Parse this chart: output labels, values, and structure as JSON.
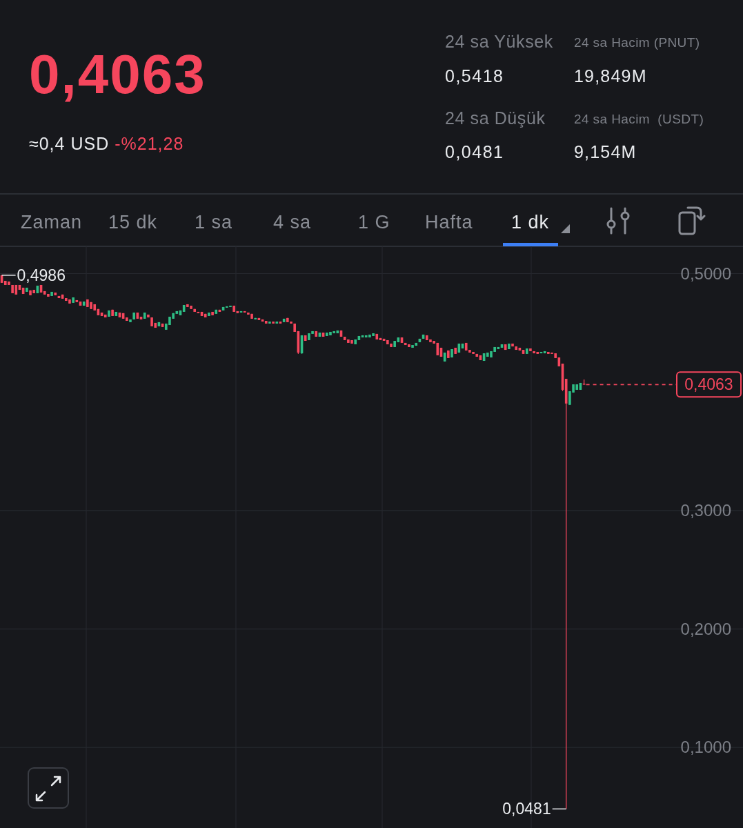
{
  "chart_data": {
    "type": "candlestick",
    "title": "0,4063",
    "annotations": [
      "≈0,4 USD",
      "-%21,28",
      "24 sa Yüksek",
      "0,5418",
      "24 sa Hacim (PNUT)",
      "19,849M",
      "24 sa Düşük",
      "0,0481",
      "24 sa Hacim  (USDT)",
      "9,154M",
      "Zaman",
      "15 dk",
      "1 sa",
      "4 sa",
      "1 G",
      "Hafta",
      "1 dk",
      "0,4986",
      "0,0481"
    ],
    "categories": [
      null,
      null,
      null,
      null,
      null,
      null,
      null,
      null,
      null,
      null,
      null,
      null,
      null,
      null,
      null,
      null,
      null,
      null,
      null,
      null,
      null,
      null,
      null,
      null,
      null,
      null,
      null,
      null,
      null,
      null,
      null,
      null,
      null,
      null,
      null,
      null,
      null,
      null,
      null,
      null,
      null,
      null,
      null,
      null,
      null,
      null,
      null,
      null,
      null,
      null,
      null,
      null,
      null,
      null,
      null,
      null,
      null,
      null,
      null,
      null,
      null,
      null,
      null,
      null,
      null,
      null,
      null,
      null,
      null,
      null,
      null,
      null,
      null,
      null,
      null,
      null,
      null,
      null,
      null,
      null,
      null,
      null,
      null,
      null,
      null,
      null,
      null,
      null,
      null,
      null,
      null,
      null,
      null,
      null,
      null,
      null,
      null,
      null,
      null,
      null,
      null,
      null,
      null,
      null,
      null,
      null,
      null,
      null,
      null,
      null,
      null,
      null,
      null,
      null,
      null,
      null,
      null,
      null,
      null,
      null,
      null,
      null,
      null,
      null,
      null,
      null,
      null,
      null,
      null,
      null,
      null,
      null,
      null,
      null,
      null,
      null,
      null,
      null,
      null,
      null,
      null,
      null,
      null,
      null,
      null,
      null,
      null,
      null,
      null,
      null,
      null,
      null,
      null,
      null,
      null,
      null,
      null,
      null,
      null,
      null,
      null,
      null,
      null,
      null,
      null,
      null,
      null,
      null,
      null,
      null,
      null,
      null,
      null,
      null,
      null,
      null,
      null,
      null,
      null,
      null,
      null,
      null,
      null,
      null,
      null,
      null,
      null,
      null,
      null,
      null,
      null,
      null,
      null,
      null,
      null,
      null,
      null,
      null,
      null,
      null,
      null,
      null,
      null,
      null,
      null,
      null,
      null,
      null
    ],
    "ohlc": [
      [
        0.4986,
        0.4986,
        0.4922,
        0.4922
      ],
      [
        0.4939,
        0.4939,
        0.4904,
        0.4904
      ],
      [
        0.4933,
        0.4933,
        0.4904,
        0.4904
      ],
      [
        0.4904,
        0.4904,
        0.4834,
        0.4834
      ],
      [
        0.4904,
        0.4904,
        0.4823,
        0.4823
      ],
      [
        0.4904,
        0.4904,
        0.4863,
        0.4863
      ],
      [
        0.4881,
        0.4881,
        0.4828,
        0.4828
      ],
      [
        0.4846,
        0.4881,
        0.4846,
        0.4881
      ],
      [
        0.4858,
        0.4858,
        0.4817,
        0.4817
      ],
      [
        0.4863,
        0.4863,
        0.4834,
        0.4834
      ],
      [
        0.4834,
        0.4898,
        0.4834,
        0.4898
      ],
      [
        0.4904,
        0.4904,
        0.484,
        0.484
      ],
      [
        0.4852,
        0.4852,
        0.4823,
        0.4823
      ],
      [
        0.4828,
        0.4828,
        0.4805,
        0.4805
      ],
      [
        0.4811,
        0.4846,
        0.4811,
        0.4846
      ],
      [
        0.484,
        0.484,
        0.4817,
        0.4817
      ],
      [
        0.4811,
        0.4811,
        0.4793,
        0.4793
      ],
      [
        0.4823,
        0.4823,
        0.4788,
        0.4788
      ],
      [
        0.4793,
        0.4793,
        0.477,
        0.477
      ],
      [
        0.4782,
        0.4782,
        0.4747,
        0.4747
      ],
      [
        0.4753,
        0.4799,
        0.4753,
        0.4799
      ],
      [
        0.4776,
        0.4776,
        0.4759,
        0.4759
      ],
      [
        0.4764,
        0.4764,
        0.4729,
        0.4729
      ],
      [
        0.4729,
        0.4764,
        0.4729,
        0.4764
      ],
      [
        0.4782,
        0.4782,
        0.4718,
        0.4718
      ],
      [
        0.4759,
        0.4759,
        0.4701,
        0.4701
      ],
      [
        0.4741,
        0.4741,
        0.4689,
        0.4689
      ],
      [
        0.4701,
        0.4701,
        0.4648,
        0.4648
      ],
      [
        0.4671,
        0.4671,
        0.4642,
        0.4642
      ],
      [
        0.4654,
        0.4654,
        0.463,
        0.463
      ],
      [
        0.4636,
        0.4689,
        0.4636,
        0.4689
      ],
      [
        0.4695,
        0.4695,
        0.4642,
        0.4642
      ],
      [
        0.4642,
        0.4677,
        0.4642,
        0.4677
      ],
      [
        0.4671,
        0.4671,
        0.463,
        0.463
      ],
      [
        0.4666,
        0.4666,
        0.4619,
        0.4619
      ],
      [
        0.463,
        0.463,
        0.4601,
        0.4601
      ],
      [
        0.459,
        0.4613,
        0.459,
        0.4613
      ],
      [
        0.4613,
        0.4671,
        0.4613,
        0.4671
      ],
      [
        0.4671,
        0.4671,
        0.4619,
        0.4619
      ],
      [
        0.4636,
        0.4636,
        0.4613,
        0.4613
      ],
      [
        0.4619,
        0.4671,
        0.4619,
        0.4671
      ],
      [
        0.4654,
        0.4654,
        0.463,
        0.463
      ],
      [
        0.463,
        0.463,
        0.4555,
        0.4555
      ],
      [
        0.4584,
        0.4584,
        0.4543,
        0.4543
      ],
      [
        0.4555,
        0.459,
        0.4555,
        0.459
      ],
      [
        0.4578,
        0.4578,
        0.4549,
        0.4549
      ],
      [
        0.4526,
        0.4578,
        0.4526,
        0.4578
      ],
      [
        0.4566,
        0.4636,
        0.4566,
        0.4636
      ],
      [
        0.4619,
        0.4666,
        0.4619,
        0.4666
      ],
      [
        0.466,
        0.4683,
        0.466,
        0.4683
      ],
      [
        0.4648,
        0.4689,
        0.4648,
        0.4689
      ],
      [
        0.4677,
        0.4735,
        0.4677,
        0.4735
      ],
      [
        0.4741,
        0.4741,
        0.4718,
        0.4718
      ],
      [
        0.4729,
        0.4729,
        0.4701,
        0.4701
      ],
      [
        0.4701,
        0.4701,
        0.4677,
        0.4677
      ],
      [
        0.4677,
        0.4677,
        0.4666,
        0.4666
      ],
      [
        0.4677,
        0.4677,
        0.4642,
        0.4642
      ],
      [
        0.466,
        0.466,
        0.463,
        0.463
      ],
      [
        0.4642,
        0.4671,
        0.4642,
        0.4671
      ],
      [
        0.4677,
        0.4677,
        0.4648,
        0.4648
      ],
      [
        0.466,
        0.4695,
        0.466,
        0.4695
      ],
      [
        0.4695,
        0.4695,
        0.4677,
        0.4677
      ],
      [
        0.4689,
        0.4718,
        0.4689,
        0.4718
      ],
      [
        0.4712,
        0.4724,
        0.4712,
        0.4724
      ],
      [
        0.4718,
        0.4729,
        0.4718,
        0.4729
      ],
      [
        0.4729,
        0.4729,
        0.4677,
        0.4677
      ],
      [
        0.4683,
        0.4683,
        0.4666,
        0.4666
      ],
      [
        0.4671,
        0.4683,
        0.4671,
        0.4683
      ],
      [
        0.4683,
        0.4683,
        0.4671,
        0.4671
      ],
      [
        0.4671,
        0.4671,
        0.4654,
        0.4654
      ],
      [
        0.466,
        0.466,
        0.4619,
        0.4619
      ],
      [
        0.4613,
        0.4625,
        0.4613,
        0.4625
      ],
      [
        0.4625,
        0.4625,
        0.4607,
        0.4607
      ],
      [
        0.4613,
        0.4613,
        0.4595,
        0.4595
      ],
      [
        0.4601,
        0.4601,
        0.4578,
        0.4578
      ],
      [
        0.4578,
        0.4595,
        0.4578,
        0.4595
      ],
      [
        0.4595,
        0.4595,
        0.4578,
        0.4578
      ],
      [
        0.4578,
        0.4595,
        0.4578,
        0.4595
      ],
      [
        0.4595,
        0.4595,
        0.4578,
        0.4578
      ],
      [
        0.459,
        0.4619,
        0.459,
        0.4619
      ],
      [
        0.4625,
        0.4625,
        0.459,
        0.459
      ],
      [
        0.4595,
        0.4595,
        0.4578,
        0.4578
      ],
      [
        0.4578,
        0.4578,
        0.4508,
        0.4508
      ],
      [
        0.4514,
        0.4514,
        0.4322,
        0.4333
      ],
      [
        0.4327,
        0.4479,
        0.4322,
        0.4479
      ],
      [
        0.4479,
        0.4479,
        0.4432,
        0.4432
      ],
      [
        0.4438,
        0.4496,
        0.4438,
        0.4496
      ],
      [
        0.4491,
        0.4514,
        0.4491,
        0.4514
      ],
      [
        0.4514,
        0.4514,
        0.4467,
        0.4467
      ],
      [
        0.4467,
        0.4502,
        0.4467,
        0.4502
      ],
      [
        0.4502,
        0.4502,
        0.4467,
        0.4467
      ],
      [
        0.4473,
        0.4502,
        0.4473,
        0.4502
      ],
      [
        0.4479,
        0.4508,
        0.4479,
        0.4508
      ],
      [
        0.4496,
        0.4514,
        0.4496,
        0.4514
      ],
      [
        0.4496,
        0.452,
        0.4496,
        0.452
      ],
      [
        0.452,
        0.452,
        0.4467,
        0.4467
      ],
      [
        0.4467,
        0.4467,
        0.4438,
        0.4438
      ],
      [
        0.4444,
        0.4444,
        0.4415,
        0.4415
      ],
      [
        0.4438,
        0.4438,
        0.4409,
        0.4409
      ],
      [
        0.4403,
        0.4444,
        0.4403,
        0.4444
      ],
      [
        0.4438,
        0.4473,
        0.4438,
        0.4473
      ],
      [
        0.4461,
        0.4479,
        0.4461,
        0.4479
      ],
      [
        0.4461,
        0.4479,
        0.4461,
        0.4479
      ],
      [
        0.4461,
        0.4485,
        0.4461,
        0.4485
      ],
      [
        0.4473,
        0.4496,
        0.4473,
        0.4496
      ],
      [
        0.4491,
        0.4491,
        0.4444,
        0.4444
      ],
      [
        0.4456,
        0.4456,
        0.4438,
        0.4438
      ],
      [
        0.445,
        0.445,
        0.4432,
        0.4432
      ],
      [
        0.4438,
        0.4438,
        0.4403,
        0.4403
      ],
      [
        0.4409,
        0.4409,
        0.438,
        0.438
      ],
      [
        0.438,
        0.4432,
        0.438,
        0.4432
      ],
      [
        0.4421,
        0.4461,
        0.4421,
        0.4461
      ],
      [
        0.4461,
        0.4461,
        0.4415,
        0.4415
      ],
      [
        0.4415,
        0.4415,
        0.4397,
        0.4397
      ],
      [
        0.4403,
        0.4403,
        0.438,
        0.438
      ],
      [
        0.4374,
        0.4397,
        0.4374,
        0.4397
      ],
      [
        0.4391,
        0.4415,
        0.4391,
        0.4415
      ],
      [
        0.4421,
        0.445,
        0.4421,
        0.445
      ],
      [
        0.445,
        0.4485,
        0.445,
        0.4485
      ],
      [
        0.4479,
        0.4479,
        0.4438,
        0.4438
      ],
      [
        0.4444,
        0.4444,
        0.4421,
        0.4421
      ],
      [
        0.4432,
        0.4432,
        0.4409,
        0.4409
      ],
      [
        0.4415,
        0.4415,
        0.431,
        0.431
      ],
      [
        0.4374,
        0.4374,
        0.4298,
        0.4298
      ],
      [
        0.4258,
        0.4333,
        0.4258,
        0.4333
      ],
      [
        0.4351,
        0.4351,
        0.4287,
        0.4287
      ],
      [
        0.4292,
        0.4362,
        0.4292,
        0.4362
      ],
      [
        0.4374,
        0.4374,
        0.4322,
        0.4322
      ],
      [
        0.4333,
        0.4409,
        0.4333,
        0.4409
      ],
      [
        0.4368,
        0.4409,
        0.4368,
        0.4409
      ],
      [
        0.4415,
        0.4415,
        0.4351,
        0.4351
      ],
      [
        0.4356,
        0.4356,
        0.4333,
        0.4333
      ],
      [
        0.4339,
        0.4339,
        0.4322,
        0.4322
      ],
      [
        0.4322,
        0.4322,
        0.4298,
        0.4298
      ],
      [
        0.431,
        0.431,
        0.4269,
        0.4269
      ],
      [
        0.4263,
        0.4327,
        0.4263,
        0.4327
      ],
      [
        0.4298,
        0.4333,
        0.4298,
        0.4333
      ],
      [
        0.4292,
        0.4345,
        0.4292,
        0.4345
      ],
      [
        0.4339,
        0.438,
        0.4339,
        0.438
      ],
      [
        0.4362,
        0.438,
        0.4362,
        0.438
      ],
      [
        0.4374,
        0.4403,
        0.4374,
        0.4403
      ],
      [
        0.4403,
        0.4403,
        0.4356,
        0.4356
      ],
      [
        0.4362,
        0.4409,
        0.4362,
        0.4409
      ],
      [
        0.4409,
        0.4409,
        0.4385,
        0.4385
      ],
      [
        0.4385,
        0.4385,
        0.4356,
        0.4356
      ],
      [
        0.4374,
        0.4374,
        0.4351,
        0.4351
      ],
      [
        0.4356,
        0.4356,
        0.4322,
        0.4322
      ],
      [
        0.4322,
        0.4368,
        0.4322,
        0.4368
      ],
      [
        0.4368,
        0.4368,
        0.4345,
        0.4345
      ],
      [
        0.4345,
        0.4345,
        0.4327,
        0.4327
      ],
      [
        0.4339,
        0.4339,
        0.4322,
        0.4322
      ],
      [
        0.4327,
        0.4339,
        0.4327,
        0.4339
      ],
      [
        0.4327,
        0.4345,
        0.4327,
        0.4345
      ],
      [
        0.4339,
        0.4339,
        0.4322,
        0.4322
      ],
      [
        0.4333,
        0.4333,
        0.4322,
        0.4322
      ],
      [
        0.4327,
        0.4327,
        0.4287,
        0.4287
      ],
      [
        0.4292,
        0.4292,
        0.4217,
        0.4217
      ],
      [
        0.424,
        0.424,
        0.4008,
        0.4019
      ],
      [
        0.4112,
        0.4112,
        0.0481,
        0.3903
      ],
      [
        0.3892,
        0.4007,
        0.3892,
        0.4007
      ],
      [
        0.3996,
        0.4065,
        0.3996,
        0.4065
      ],
      [
        0.4019,
        0.4065,
        0.4019,
        0.4065
      ],
      [
        0.4019,
        0.4077,
        0.4019,
        0.4077
      ],
      [
        0.4071,
        0.4106,
        0.4063,
        0.4063
      ],
      null,
      null,
      null,
      null,
      null,
      null,
      null,
      null,
      null,
      null,
      null,
      null,
      null,
      null,
      null,
      null,
      null,
      null,
      null,
      null,
      null,
      null,
      null,
      null,
      null,
      null,
      null,
      null,
      null,
      null,
      null,
      null,
      null,
      null,
      null,
      null,
      null,
      null,
      null,
      null,
      null,
      null,
      null,
      null
    ],
    "colors": [
      "#f6465d",
      "#f6465d",
      "#f6465d",
      "#f6465d",
      "#f6465d",
      "#f6465d",
      "#f6465d",
      "#2ebd85",
      "#f6465d",
      "#f6465d",
      "#2ebd85",
      "#f6465d",
      "#f6465d",
      "#f6465d",
      "#2ebd85",
      "#f6465d",
      "#f6465d",
      "#f6465d",
      "#f6465d",
      "#f6465d",
      "#2ebd85",
      "#f6465d",
      "#f6465d",
      "#2ebd85",
      "#f6465d",
      "#f6465d",
      "#f6465d",
      "#f6465d",
      "#f6465d",
      "#f6465d",
      "#2ebd85",
      "#f6465d",
      "#2ebd85",
      "#f6465d",
      "#f6465d",
      "#f6465d",
      "#2ebd85",
      "#2ebd85",
      "#f6465d",
      "#f6465d",
      "#2ebd85",
      "#f6465d",
      "#f6465d",
      "#f6465d",
      "#2ebd85",
      "#f6465d",
      "#2ebd85",
      "#2ebd85",
      "#2ebd85",
      "#2ebd85",
      "#2ebd85",
      "#2ebd85",
      "#f6465d",
      "#f6465d",
      "#f6465d",
      "#f6465d",
      "#f6465d",
      "#f6465d",
      "#2ebd85",
      "#f6465d",
      "#2ebd85",
      "#f6465d",
      "#2ebd85",
      "#2ebd85",
      "#2ebd85",
      "#f6465d",
      "#f6465d",
      "#2ebd85",
      "#f6465d",
      "#f6465d",
      "#f6465d",
      "#2ebd85",
      "#f6465d",
      "#f6465d",
      "#f6465d",
      "#2ebd85",
      "#f6465d",
      "#2ebd85",
      "#f6465d",
      "#2ebd85",
      "#f6465d",
      "#f6465d",
      "#f6465d",
      "#f6465d",
      "#2ebd85",
      "#f6465d",
      "#2ebd85",
      "#2ebd85",
      "#f6465d",
      "#2ebd85",
      "#f6465d",
      "#2ebd85",
      "#2ebd85",
      "#2ebd85",
      "#2ebd85",
      "#f6465d",
      "#f6465d",
      "#f6465d",
      "#f6465d",
      "#2ebd85",
      "#2ebd85",
      "#2ebd85",
      "#2ebd85",
      "#2ebd85",
      "#2ebd85",
      "#f6465d",
      "#f6465d",
      "#f6465d",
      "#f6465d",
      "#f6465d",
      "#2ebd85",
      "#2ebd85",
      "#f6465d",
      "#f6465d",
      "#f6465d",
      "#2ebd85",
      "#2ebd85",
      "#2ebd85",
      "#2ebd85",
      "#f6465d",
      "#f6465d",
      "#f6465d",
      "#f6465d",
      "#f6465d",
      "#2ebd85",
      "#f6465d",
      "#2ebd85",
      "#f6465d",
      "#2ebd85",
      "#2ebd85",
      "#f6465d",
      "#f6465d",
      "#f6465d",
      "#f6465d",
      "#f6465d",
      "#2ebd85",
      "#2ebd85",
      "#2ebd85",
      "#2ebd85",
      "#2ebd85",
      "#2ebd85",
      "#f6465d",
      "#2ebd85",
      "#f6465d",
      "#f6465d",
      "#f6465d",
      "#f6465d",
      "#2ebd85",
      "#f6465d",
      "#f6465d",
      "#f6465d",
      "#2ebd85",
      "#2ebd85",
      "#f6465d",
      "#f6465d",
      "#f6465d",
      "#f6465d",
      "#f6465d",
      "#f6465d",
      "#2ebd85",
      "#2ebd85",
      "#2ebd85",
      "#2ebd85",
      "#f6465d",
      null,
      null,
      null,
      null,
      null,
      null,
      null,
      null,
      null,
      null,
      null,
      null,
      null,
      null,
      null,
      null,
      null,
      null,
      null,
      null,
      null,
      null,
      null,
      null,
      null,
      null,
      null,
      null,
      null,
      null,
      null,
      null,
      null,
      null,
      null,
      null,
      null,
      null,
      null,
      null,
      null,
      null,
      null,
      null
    ],
    "ylim": [
      0.032,
      0.523
    ],
    "yticks": [
      {
        "value": 0.1,
        "label": "0,1000"
      },
      {
        "value": 0.2,
        "label": "0,2000"
      },
      {
        "value": 0.3,
        "label": "0,3000"
      },
      {
        "value": 0.5,
        "label": "0,5000"
      }
    ],
    "grid": true,
    "ref_lines": [
      {
        "axis": "y",
        "value": 0.4063,
        "label": "0,4063",
        "color": "#f6465d",
        "line_style": "dashed"
      }
    ]
  }
}
